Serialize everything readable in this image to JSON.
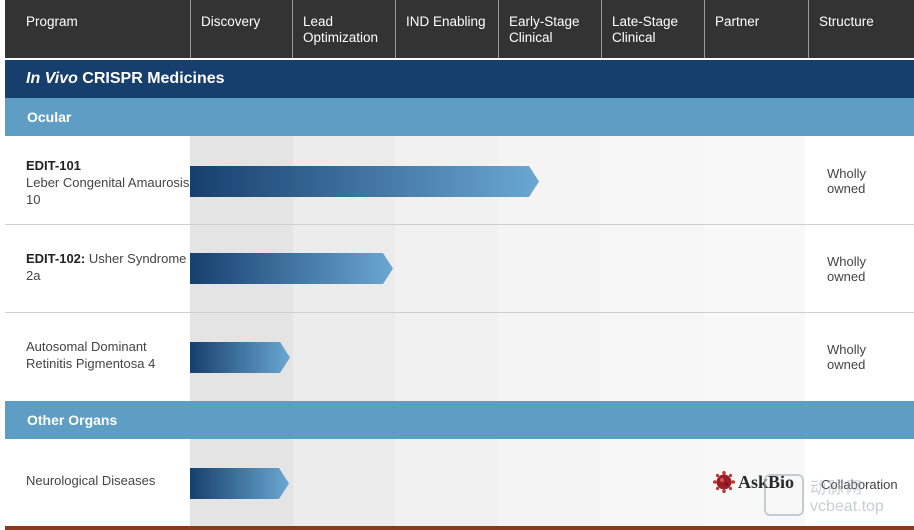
{
  "header": {
    "program": "Program",
    "discovery": "Discovery",
    "lead_optimization": "Lead Optimization",
    "ind_enabling": "IND Enabling",
    "early_stage": "Early-Stage Clinical",
    "late_stage": "Late-Stage Clinical",
    "partner": "Partner",
    "structure": "Structure"
  },
  "section": {
    "title_italic": "In Vivo",
    "title_rest": " CRISPR Medicines"
  },
  "groups": {
    "ocular": "Ocular",
    "other_organs": "Other Organs"
  },
  "programs": [
    {
      "name_bold": "EDIT-101",
      "name_rest": "Leber Congenital Amaurosis 10",
      "stage_progress": 3.4,
      "structure": "Wholly owned"
    },
    {
      "name_bold": "EDIT-102:",
      "name_rest": " Usher Syndrome 2a",
      "stage_progress": 1.98,
      "structure": "Wholly owned"
    },
    {
      "name_bold": "",
      "name_rest": "Autosomal Dominant Retinitis Pigmentosa 4",
      "stage_progress": 0.98,
      "structure": "Wholly owned"
    },
    {
      "name_bold": "",
      "name_rest": "Neurological Diseases",
      "stage_progress": 0.97,
      "partner": "AskBio",
      "structure": "Collaboration"
    }
  ],
  "colors": {
    "header_bg": "#333333",
    "section_bg": "#173f6e",
    "group_bg": "#5f9ec4",
    "bar_start": "#173f6e",
    "bar_end": "#6aa8d1"
  },
  "watermark": {
    "cn": "动脉网",
    "url": "vcbeat.top"
  }
}
